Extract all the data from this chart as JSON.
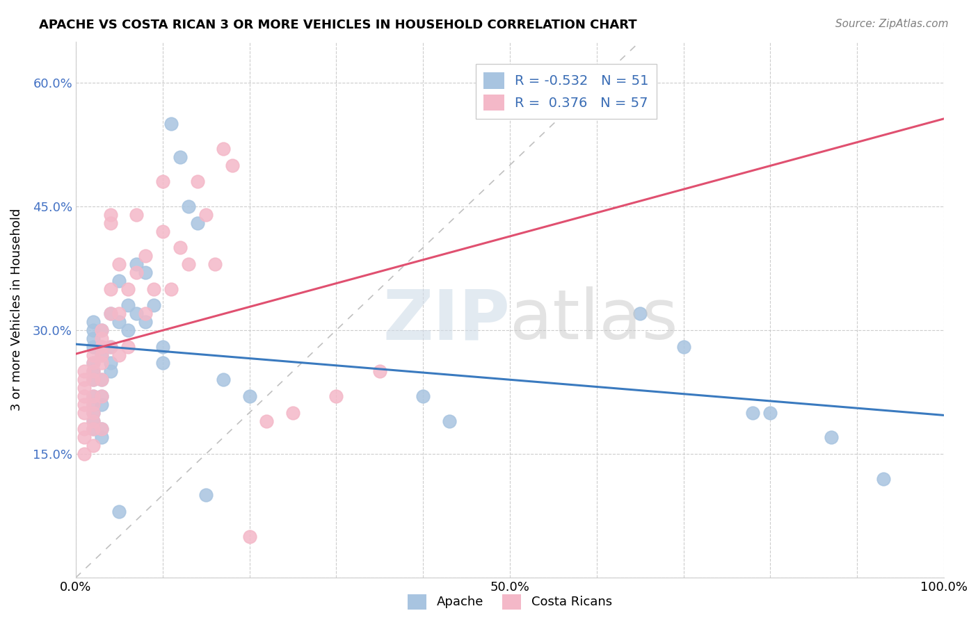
{
  "title": "APACHE VS COSTA RICAN 3 OR MORE VEHICLES IN HOUSEHOLD CORRELATION CHART",
  "source": "Source: ZipAtlas.com",
  "ylabel": "3 or more Vehicles in Household",
  "xlim": [
    0.0,
    1.0
  ],
  "ylim": [
    0.0,
    0.65
  ],
  "xticks": [
    0.0,
    0.1,
    0.2,
    0.3,
    0.4,
    0.5,
    0.6,
    0.7,
    0.8,
    0.9,
    1.0
  ],
  "xticklabels": [
    "0.0%",
    "",
    "",
    "",
    "",
    "50.0%",
    "",
    "",
    "",
    "",
    "100.0%"
  ],
  "yticks": [
    0.0,
    0.15,
    0.3,
    0.45,
    0.6
  ],
  "yticklabels": [
    "",
    "15.0%",
    "30.0%",
    "45.0%",
    "60.0%"
  ],
  "grid_color": "#cccccc",
  "legend_R1": "R = -0.532",
  "legend_N1": "N = 51",
  "legend_R2": "R =  0.376",
  "legend_N2": "N = 57",
  "apache_color": "#a8c4e0",
  "costa_rican_color": "#f4b8c8",
  "apache_line_color": "#3a7abf",
  "costa_rican_line_color": "#e05070",
  "diagonal_color": "#c0c0c0",
  "apache_scatter_x": [
    0.02,
    0.02,
    0.02,
    0.02,
    0.02,
    0.02,
    0.02,
    0.02,
    0.02,
    0.02,
    0.02,
    0.02,
    0.03,
    0.03,
    0.03,
    0.03,
    0.03,
    0.03,
    0.03,
    0.03,
    0.04,
    0.04,
    0.04,
    0.04,
    0.05,
    0.05,
    0.05,
    0.06,
    0.06,
    0.07,
    0.07,
    0.08,
    0.08,
    0.09,
    0.1,
    0.1,
    0.11,
    0.12,
    0.13,
    0.14,
    0.15,
    0.17,
    0.2,
    0.4,
    0.43,
    0.65,
    0.7,
    0.78,
    0.8,
    0.87,
    0.93
  ],
  "apache_scatter_y": [
    0.26,
    0.28,
    0.29,
    0.3,
    0.31,
    0.25,
    0.24,
    0.22,
    0.21,
    0.2,
    0.19,
    0.18,
    0.3,
    0.28,
    0.27,
    0.24,
    0.22,
    0.21,
    0.18,
    0.17,
    0.32,
    0.28,
    0.26,
    0.25,
    0.36,
    0.31,
    0.08,
    0.33,
    0.3,
    0.38,
    0.32,
    0.37,
    0.31,
    0.33,
    0.28,
    0.26,
    0.55,
    0.51,
    0.45,
    0.43,
    0.1,
    0.24,
    0.22,
    0.22,
    0.19,
    0.32,
    0.28,
    0.2,
    0.2,
    0.17,
    0.12
  ],
  "costa_rican_scatter_x": [
    0.01,
    0.01,
    0.01,
    0.01,
    0.01,
    0.01,
    0.01,
    0.01,
    0.01,
    0.02,
    0.02,
    0.02,
    0.02,
    0.02,
    0.02,
    0.02,
    0.02,
    0.02,
    0.02,
    0.03,
    0.03,
    0.03,
    0.03,
    0.03,
    0.03,
    0.03,
    0.03,
    0.04,
    0.04,
    0.04,
    0.04,
    0.04,
    0.05,
    0.05,
    0.05,
    0.06,
    0.06,
    0.07,
    0.07,
    0.08,
    0.08,
    0.09,
    0.1,
    0.1,
    0.11,
    0.12,
    0.13,
    0.14,
    0.15,
    0.16,
    0.17,
    0.18,
    0.2,
    0.22,
    0.25,
    0.3,
    0.35
  ],
  "costa_rican_scatter_y": [
    0.25,
    0.24,
    0.23,
    0.22,
    0.21,
    0.2,
    0.18,
    0.17,
    0.15,
    0.27,
    0.26,
    0.25,
    0.24,
    0.22,
    0.21,
    0.2,
    0.19,
    0.18,
    0.16,
    0.3,
    0.29,
    0.28,
    0.27,
    0.26,
    0.24,
    0.22,
    0.18,
    0.44,
    0.43,
    0.35,
    0.32,
    0.28,
    0.38,
    0.32,
    0.27,
    0.35,
    0.28,
    0.44,
    0.37,
    0.39,
    0.32,
    0.35,
    0.48,
    0.42,
    0.35,
    0.4,
    0.38,
    0.48,
    0.44,
    0.38,
    0.52,
    0.5,
    0.05,
    0.19,
    0.2,
    0.22,
    0.25
  ]
}
